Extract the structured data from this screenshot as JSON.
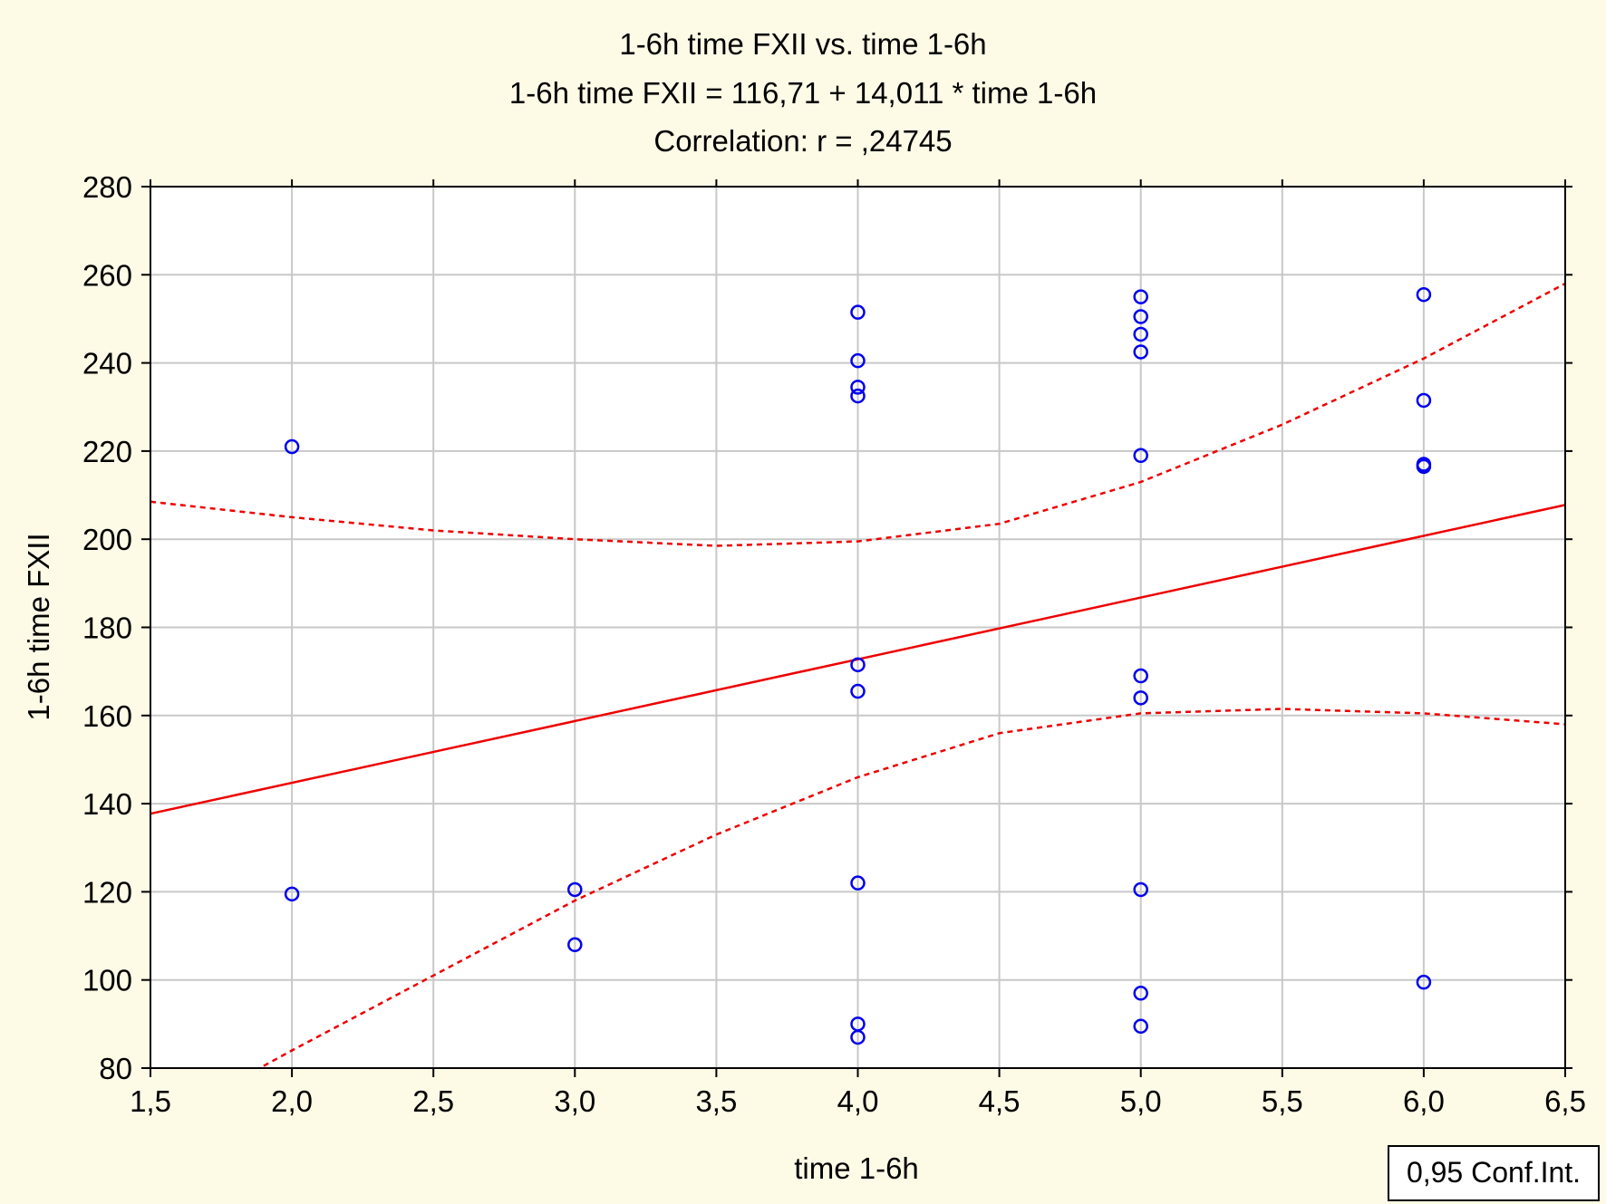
{
  "chart_data": {
    "type": "scatter",
    "title_lines": [
      "1-6h time FXII vs. time 1-6h",
      "1-6h time FXII = 116,71 + 14,011 * time 1-6h",
      "Correlation: r = ,24745"
    ],
    "xlabel": "time 1-6h",
    "ylabel": "1-6h time FXII",
    "xlim": [
      1.5,
      6.5
    ],
    "ylim": [
      80,
      280
    ],
    "x_ticks": [
      "1,5",
      "2,0",
      "2,5",
      "3,0",
      "3,5",
      "4,0",
      "4,5",
      "5,0",
      "5,5",
      "6,0",
      "6,5"
    ],
    "y_ticks": [
      "80",
      "100",
      "120",
      "140",
      "160",
      "180",
      "200",
      "220",
      "240",
      "260",
      "280"
    ],
    "x_tick_values": [
      1.5,
      2.0,
      2.5,
      3.0,
      3.5,
      4.0,
      4.5,
      5.0,
      5.5,
      6.0,
      6.5
    ],
    "y_tick_values": [
      80,
      100,
      120,
      140,
      160,
      180,
      200,
      220,
      240,
      260,
      280
    ],
    "grid": true,
    "legend": {
      "placement": "bottom-right",
      "text": "0,95 Conf.Int."
    },
    "colors": {
      "points": "#0000ee",
      "regression": "#ee0000",
      "background": "#fdfae6",
      "grid": "#c8c8c8"
    },
    "points": [
      {
        "x": 2.0,
        "y": 221
      },
      {
        "x": 2.0,
        "y": 119.5
      },
      {
        "x": 3.0,
        "y": 120.5
      },
      {
        "x": 3.0,
        "y": 108
      },
      {
        "x": 4.0,
        "y": 251.5
      },
      {
        "x": 4.0,
        "y": 240.5
      },
      {
        "x": 4.0,
        "y": 234.5
      },
      {
        "x": 4.0,
        "y": 232.5
      },
      {
        "x": 4.0,
        "y": 171.5
      },
      {
        "x": 4.0,
        "y": 165.5
      },
      {
        "x": 4.0,
        "y": 122
      },
      {
        "x": 4.0,
        "y": 90
      },
      {
        "x": 4.0,
        "y": 87
      },
      {
        "x": 5.0,
        "y": 255
      },
      {
        "x": 5.0,
        "y": 250.5
      },
      {
        "x": 5.0,
        "y": 246.5
      },
      {
        "x": 5.0,
        "y": 242.5
      },
      {
        "x": 5.0,
        "y": 219
      },
      {
        "x": 5.0,
        "y": 169
      },
      {
        "x": 5.0,
        "y": 164
      },
      {
        "x": 5.0,
        "y": 120.5
      },
      {
        "x": 5.0,
        "y": 97
      },
      {
        "x": 5.0,
        "y": 89.5
      },
      {
        "x": 6.0,
        "y": 255.5
      },
      {
        "x": 6.0,
        "y": 231.5
      },
      {
        "x": 6.0,
        "y": 217
      },
      {
        "x": 6.0,
        "y": 216.5
      },
      {
        "x": 6.0,
        "y": 99.5
      }
    ],
    "regression": {
      "intercept": 116.71,
      "slope": 14.011
    },
    "ci_upper": [
      {
        "x": 1.5,
        "y": 208.5
      },
      {
        "x": 2.0,
        "y": 205
      },
      {
        "x": 2.5,
        "y": 202
      },
      {
        "x": 3.0,
        "y": 200
      },
      {
        "x": 3.5,
        "y": 198.5
      },
      {
        "x": 4.0,
        "y": 199.5
      },
      {
        "x": 4.5,
        "y": 203.5
      },
      {
        "x": 5.0,
        "y": 213
      },
      {
        "x": 5.5,
        "y": 226
      },
      {
        "x": 6.0,
        "y": 241
      },
      {
        "x": 6.5,
        "y": 258
      }
    ],
    "ci_lower": [
      {
        "x": 1.9,
        "y": 80.5
      },
      {
        "x": 2.0,
        "y": 84
      },
      {
        "x": 2.5,
        "y": 101
      },
      {
        "x": 3.0,
        "y": 118
      },
      {
        "x": 3.5,
        "y": 133
      },
      {
        "x": 4.0,
        "y": 146
      },
      {
        "x": 4.5,
        "y": 156
      },
      {
        "x": 5.0,
        "y": 160.5
      },
      {
        "x": 5.5,
        "y": 161.5
      },
      {
        "x": 6.0,
        "y": 160.5
      },
      {
        "x": 6.5,
        "y": 158
      }
    ]
  }
}
